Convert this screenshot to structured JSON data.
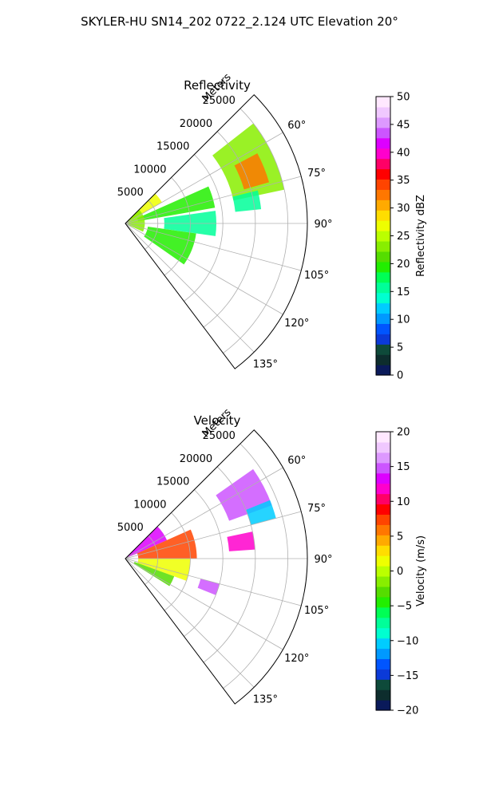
{
  "suptitle": "SKYLER-HU  SN14_202  0722_2.124 UTC Elevation 20°",
  "chart_data": [
    {
      "type": "polar-ppi",
      "title": "Reflectivity",
      "radial_axis_label": "Meters",
      "radial_ticks": [
        5000,
        10000,
        15000,
        20000,
        25000
      ],
      "radial_tick_labels": [
        "5000",
        "10000",
        "15000",
        "20000",
        "25000"
      ],
      "range_max_m": 28000,
      "azimuth_range_deg": [
        45,
        143
      ],
      "azimuth_ticks_deg": [
        60,
        75,
        90,
        105,
        120,
        135
      ],
      "azimuth_tick_labels": [
        "60°",
        "75°",
        "90°",
        "105°",
        "120°",
        "135°"
      ],
      "grid": true,
      "colorbar": {
        "label": "Reflectivity dBZ",
        "vmin": 0,
        "vmax": 50,
        "ticks": [
          0,
          5,
          10,
          15,
          20,
          25,
          30,
          35,
          40,
          45,
          50
        ],
        "tick_labels": [
          "0",
          "5",
          "10",
          "15",
          "20",
          "25",
          "30",
          "35",
          "40",
          "45",
          "50"
        ],
        "colors": [
          "#0a1a5a",
          "#0d2d2d",
          "#0e4a3a",
          "#0b3ad8",
          "#0055ff",
          "#0099ff",
          "#00ccff",
          "#00ffd0",
          "#00ff99",
          "#00ff55",
          "#22ee00",
          "#55dd00",
          "#88ee00",
          "#bbff00",
          "#eeff00",
          "#ffdd00",
          "#ffaa00",
          "#ff7700",
          "#ff4400",
          "#ff0000",
          "#ff0066",
          "#ff00cc",
          "#dd00ff",
          "#cc55ff",
          "#dd99ff",
          "#f0c8ff",
          "#ffe8ff"
        ]
      },
      "echo_regions": [
        {
          "az": [
            52,
            78
          ],
          "r": [
            17000,
            25000
          ],
          "value": 24
        },
        {
          "az": [
            62,
            74
          ],
          "r": [
            19000,
            23000
          ],
          "value": 32
        },
        {
          "az": [
            45,
            60
          ],
          "r": [
            300,
            6500
          ],
          "value": 26
        },
        {
          "az": [
            66,
            80
          ],
          "r": [
            2000,
            14000
          ],
          "value": 20
        },
        {
          "az": [
            82,
            98
          ],
          "r": [
            6000,
            14000
          ],
          "value": 16
        },
        {
          "az": [
            98,
            125
          ],
          "r": [
            3500,
            11000
          ],
          "value": 19
        },
        {
          "az": [
            45,
            115
          ],
          "r": [
            200,
            3000
          ],
          "value": 24
        },
        {
          "az": [
            76,
            84
          ],
          "r": [
            17000,
            21000
          ],
          "value": 16
        }
      ]
    },
    {
      "type": "polar-ppi",
      "title": "Velocity",
      "radial_axis_label": "Meters",
      "radial_ticks": [
        5000,
        10000,
        15000,
        20000,
        25000
      ],
      "radial_tick_labels": [
        "5000",
        "10000",
        "15000",
        "20000",
        "25000"
      ],
      "range_max_m": 28000,
      "azimuth_range_deg": [
        45,
        143
      ],
      "azimuth_ticks_deg": [
        60,
        75,
        90,
        105,
        120,
        135
      ],
      "azimuth_tick_labels": [
        "60°",
        "75°",
        "90°",
        "105°",
        "120°",
        "135°"
      ],
      "grid": true,
      "colorbar": {
        "label": "Velocity (m/s)",
        "vmin": -20,
        "vmax": 20,
        "ticks": [
          -20,
          -15,
          -10,
          -5,
          0,
          5,
          10,
          15,
          20
        ],
        "tick_labels": [
          "−20",
          "−15",
          "−10",
          "−5",
          "0",
          "5",
          "10",
          "15",
          "20"
        ],
        "colors": [
          "#0a1a5a",
          "#0d2d2d",
          "#0e4a3a",
          "#0b3ad8",
          "#0055ff",
          "#0099ff",
          "#00ccff",
          "#00ffd0",
          "#00ff99",
          "#00ff55",
          "#22ee00",
          "#55dd00",
          "#88ee00",
          "#bbff00",
          "#eeff00",
          "#ffdd00",
          "#ffaa00",
          "#ff7700",
          "#ff4400",
          "#ff0000",
          "#ff0066",
          "#ff00cc",
          "#dd00ff",
          "#cc55ff",
          "#dd99ff",
          "#f0c8ff",
          "#ffe8ff"
        ]
      },
      "echo_regions": [
        {
          "az": [
            55,
            70
          ],
          "r": [
            17000,
            24000
          ],
          "value": 15
        },
        {
          "az": [
            68,
            75
          ],
          "r": [
            20000,
            24000
          ],
          "value": -11
        },
        {
          "az": [
            45,
            66
          ],
          "r": [
            300,
            7000
          ],
          "value": 13
        },
        {
          "az": [
            66,
            90
          ],
          "r": [
            2000,
            11000
          ],
          "value": 8
        },
        {
          "az": [
            90,
            110
          ],
          "r": [
            2000,
            10000
          ],
          "value": 2
        },
        {
          "az": [
            110,
            122
          ],
          "r": [
            1500,
            8000
          ],
          "value": -3
        },
        {
          "az": [
            78,
            86
          ],
          "r": [
            16000,
            20000
          ],
          "value": 12
        },
        {
          "az": [
            105,
            112
          ],
          "r": [
            12000,
            15000
          ],
          "value": 15
        }
      ]
    }
  ]
}
